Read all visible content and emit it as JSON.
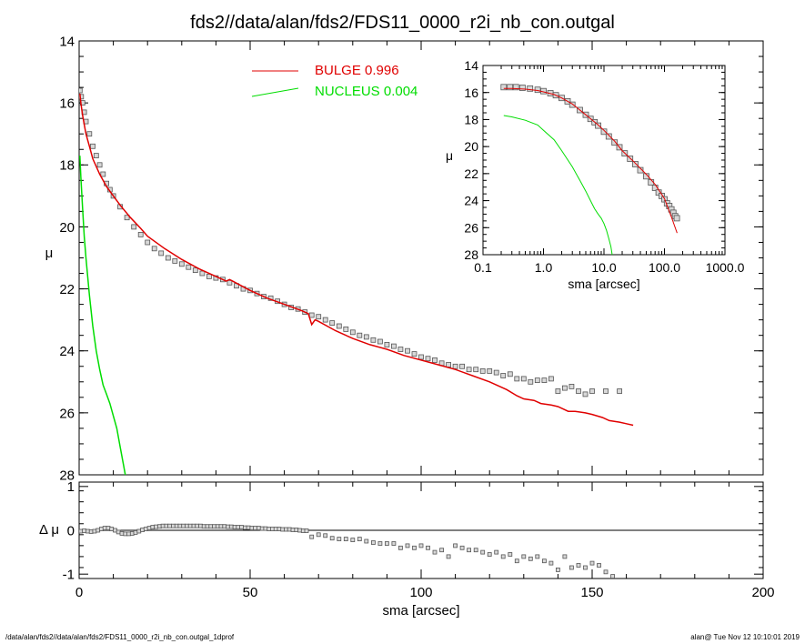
{
  "title": "fds2//data/alan/fds2/FDS11_0000_r2i_nb_con.outgal",
  "footer": {
    "left": "/data/alan/fds2//data/alan/fds2/FDS11_0000_r2i_nb_con.outgal_1dprof",
    "right": "alan@  Tue Nov 12 10:10:01 2019"
  },
  "colors": {
    "bulge": "#e00000",
    "nucleus": "#00dd00",
    "data": "#808080",
    "axis": "#000000"
  },
  "chart_data": [
    {
      "name": "main-profile",
      "type": "scatter",
      "xlabel": "",
      "ylabel": "μ",
      "xlim": [
        0,
        200
      ],
      "ylim": [
        28,
        14
      ],
      "y_reversed": true,
      "xticks": [
        0,
        50,
        100,
        150,
        200
      ],
      "yticks": [
        14,
        16,
        18,
        20,
        22,
        24,
        26,
        28
      ],
      "legend": {
        "placement": "top-center",
        "entries": [
          {
            "series": "bulge",
            "label": "BULGE  0.996"
          },
          {
            "series": "nucleus",
            "label": "NUCLEUS  0.004"
          }
        ]
      },
      "series": [
        {
          "name": "data",
          "style": "squares",
          "x": [
            0.2,
            0.6,
            1,
            1.5,
            2,
            3,
            4,
            5,
            6,
            7,
            8,
            9,
            10,
            12,
            14,
            16,
            18,
            20,
            22,
            24,
            26,
            28,
            30,
            32,
            34,
            36,
            38,
            40,
            42,
            44,
            46,
            48,
            50,
            52,
            54,
            56,
            58,
            60,
            62,
            64,
            66,
            68,
            70,
            72,
            74,
            76,
            78,
            80,
            82,
            84,
            86,
            88,
            90,
            92,
            94,
            96,
            98,
            100,
            102,
            104,
            106,
            108,
            110,
            112,
            114,
            116,
            118,
            120,
            122,
            124,
            126,
            128,
            130,
            132,
            134,
            136,
            138,
            140,
            142,
            144,
            146,
            148,
            150,
            154,
            158
          ],
          "y": [
            15.6,
            15.8,
            16.0,
            16.3,
            16.6,
            17.0,
            17.4,
            17.7,
            18.0,
            18.3,
            18.6,
            18.8,
            19.0,
            19.35,
            19.7,
            20.0,
            20.25,
            20.5,
            20.7,
            20.85,
            21.0,
            21.1,
            21.2,
            21.3,
            21.4,
            21.5,
            21.6,
            21.65,
            21.7,
            21.8,
            21.9,
            22.0,
            22.05,
            22.15,
            22.25,
            22.3,
            22.4,
            22.5,
            22.6,
            22.65,
            22.75,
            22.85,
            22.9,
            23.0,
            23.1,
            23.2,
            23.3,
            23.4,
            23.5,
            23.55,
            23.65,
            23.7,
            23.8,
            23.85,
            23.95,
            24.0,
            24.1,
            24.2,
            24.25,
            24.3,
            24.4,
            24.45,
            24.5,
            24.5,
            24.6,
            24.6,
            24.65,
            24.65,
            24.7,
            24.8,
            24.75,
            24.9,
            24.9,
            25.0,
            24.95,
            24.95,
            24.9,
            25.3,
            25.2,
            25.15,
            25.3,
            25.4,
            25.3,
            25.3,
            25.3
          ]
        },
        {
          "name": "bulge",
          "style": "line",
          "x": [
            0.2,
            0.5,
            1,
            2,
            3,
            4,
            6,
            8,
            10,
            12,
            15,
            18,
            20,
            25,
            30,
            35,
            40,
            43,
            44,
            50,
            55,
            60,
            65,
            67,
            68,
            69,
            70,
            75,
            80,
            85,
            90,
            95,
            100,
            105,
            110,
            115,
            120,
            125,
            128,
            130,
            133,
            135,
            138,
            140,
            143,
            145,
            148,
            150,
            153,
            155,
            158,
            160,
            162
          ],
          "y": [
            15.7,
            16.0,
            16.4,
            17.0,
            17.4,
            17.8,
            18.3,
            18.7,
            19.0,
            19.3,
            19.7,
            20.05,
            20.3,
            20.7,
            21.05,
            21.35,
            21.6,
            21.75,
            21.7,
            22.05,
            22.3,
            22.5,
            22.7,
            22.8,
            23.15,
            23.0,
            23.05,
            23.35,
            23.6,
            23.8,
            23.95,
            24.15,
            24.3,
            24.45,
            24.6,
            24.8,
            25.0,
            25.25,
            25.45,
            25.55,
            25.6,
            25.7,
            25.75,
            25.8,
            25.95,
            25.95,
            26.0,
            26.05,
            26.15,
            26.25,
            26.3,
            26.35,
            26.4
          ]
        },
        {
          "name": "nucleus",
          "style": "line",
          "x": [
            0.2,
            0.5,
            1,
            1.5,
            2,
            3,
            4,
            5,
            6,
            7,
            8,
            9,
            10,
            11,
            12,
            13,
            14
          ],
          "y": [
            17.7,
            18.4,
            19.4,
            20.3,
            21.0,
            22.2,
            23.2,
            24.0,
            24.6,
            25.1,
            25.4,
            25.7,
            26.1,
            26.5,
            27.1,
            27.7,
            28.3
          ]
        }
      ]
    },
    {
      "name": "residuals",
      "type": "scatter",
      "xlabel": "sma [arcsec]",
      "ylabel": "Δ μ",
      "xlim": [
        0,
        200
      ],
      "ylim": [
        -1.1,
        1.1
      ],
      "xticks": [
        0,
        50,
        100,
        150,
        200
      ],
      "yticks": [
        1,
        0,
        -1
      ],
      "series": [
        {
          "name": "residual",
          "style": "squares",
          "x": [
            0.5,
            1.5,
            2.5,
            3.5,
            4.5,
            5.5,
            6.5,
            7.5,
            8.5,
            9.5,
            10.5,
            11.5,
            12.5,
            13.5,
            14.5,
            15.5,
            16.5,
            17.5,
            18.5,
            19.5,
            20.5,
            21.5,
            22.5,
            23.5,
            24.5,
            25.5,
            26.5,
            27.5,
            28.5,
            29.5,
            30.5,
            31.5,
            32.5,
            33.5,
            34.5,
            35.5,
            36.5,
            37.5,
            38.5,
            39.5,
            40.5,
            41.5,
            42.5,
            43.5,
            44.5,
            45.5,
            46.5,
            47.5,
            48.5,
            49.5,
            50.5,
            51.5,
            52.5,
            53.5,
            54.5,
            55.5,
            56.5,
            57.5,
            58.5,
            59.5,
            60.5,
            61.5,
            62.5,
            63.5,
            64.5,
            65.5,
            66.5,
            68,
            70,
            72,
            74,
            76,
            78,
            80,
            82,
            84,
            86,
            88,
            90,
            92,
            94,
            96,
            98,
            100,
            102,
            104,
            106,
            108,
            110,
            112,
            114,
            116,
            118,
            120,
            122,
            124,
            126,
            128,
            130,
            132,
            134,
            136,
            138,
            140,
            142,
            144,
            146,
            148,
            150,
            152,
            154,
            156
          ],
          "y": [
            -0.02,
            -0.01,
            -0.02,
            -0.03,
            -0.02,
            0.0,
            0.03,
            0.05,
            0.05,
            0.03,
            0.0,
            -0.04,
            -0.07,
            -0.08,
            -0.08,
            -0.07,
            -0.05,
            -0.02,
            0.01,
            0.03,
            0.05,
            0.07,
            0.08,
            0.09,
            0.1,
            0.1,
            0.1,
            0.1,
            0.1,
            0.1,
            0.1,
            0.1,
            0.1,
            0.1,
            0.1,
            0.1,
            0.09,
            0.09,
            0.09,
            0.09,
            0.09,
            0.09,
            0.09,
            0.08,
            0.08,
            0.07,
            0.07,
            0.07,
            0.06,
            0.06,
            0.05,
            0.05,
            0.05,
            0.04,
            0.04,
            0.03,
            0.03,
            0.03,
            0.03,
            0.02,
            0.02,
            0.02,
            0.01,
            0.01,
            0.0,
            -0.01,
            -0.01,
            -0.15,
            -0.1,
            -0.12,
            -0.18,
            -0.2,
            -0.2,
            -0.22,
            -0.2,
            -0.25,
            -0.28,
            -0.3,
            -0.3,
            -0.3,
            -0.4,
            -0.35,
            -0.4,
            -0.35,
            -0.4,
            -0.5,
            -0.45,
            -0.6,
            -0.35,
            -0.4,
            -0.45,
            -0.45,
            -0.5,
            -0.55,
            -0.5,
            -0.6,
            -0.55,
            -0.7,
            -0.6,
            -0.65,
            -0.6,
            -0.7,
            -0.75,
            -0.9,
            -0.6,
            -0.85,
            -0.8,
            -0.85,
            -0.75,
            -0.8,
            -0.95,
            -1.05
          ]
        }
      ]
    },
    {
      "name": "inset-log",
      "type": "scatter",
      "xlabel": "sma [arcsec]",
      "ylabel": "μ",
      "xscale": "log",
      "xlim": [
        0.1,
        1000
      ],
      "ylim": [
        28,
        14
      ],
      "y_reversed": true,
      "xticks": [
        0.1,
        1,
        10,
        100,
        1000
      ],
      "xticklabels": [
        "0.1",
        "1.0",
        "10.0",
        "100.0",
        "1000.0"
      ],
      "yticks": [
        14,
        16,
        18,
        20,
        22,
        24,
        26,
        28
      ],
      "series": [
        {
          "name": "data",
          "style": "squares",
          "x": [
            0.22,
            0.28,
            0.35,
            0.45,
            0.6,
            0.8,
            1,
            1.3,
            1.6,
            2,
            2.5,
            3,
            4,
            5,
            6,
            7,
            8,
            10,
            12,
            15,
            18,
            22,
            27,
            33,
            40,
            50,
            60,
            70,
            80,
            90,
            100,
            110,
            120,
            130,
            140,
            150,
            160
          ],
          "y": [
            15.6,
            15.6,
            15.6,
            15.65,
            15.7,
            15.8,
            15.9,
            16.05,
            16.2,
            16.4,
            16.65,
            16.9,
            17.3,
            17.65,
            17.95,
            18.2,
            18.45,
            18.9,
            19.25,
            19.7,
            20.05,
            20.5,
            20.9,
            21.3,
            21.75,
            22.2,
            22.65,
            23.05,
            23.4,
            23.65,
            23.9,
            24.2,
            24.4,
            24.65,
            24.9,
            25.15,
            25.3
          ]
        },
        {
          "name": "bulge",
          "style": "line",
          "x": [
            0.22,
            0.3,
            0.5,
            0.8,
            1,
            1.5,
            2,
            3,
            5,
            8,
            10,
            15,
            20,
            30,
            50,
            70,
            100,
            130,
            162
          ],
          "y": [
            15.7,
            15.7,
            15.75,
            15.85,
            15.95,
            16.15,
            16.4,
            16.85,
            17.65,
            18.4,
            18.8,
            19.6,
            20.3,
            21.05,
            22.05,
            22.8,
            23.85,
            25.2,
            26.4
          ]
        },
        {
          "name": "nucleus",
          "style": "line",
          "x": [
            0.22,
            0.3,
            0.5,
            0.8,
            1,
            1.5,
            2,
            3,
            4,
            5,
            6,
            7,
            8,
            9,
            10,
            11,
            12,
            13,
            14
          ],
          "y": [
            17.7,
            17.8,
            18.05,
            18.4,
            18.8,
            19.5,
            20.3,
            21.5,
            22.5,
            23.3,
            24.0,
            24.6,
            25.0,
            25.3,
            25.7,
            26.2,
            26.8,
            27.4,
            28.3
          ]
        }
      ]
    }
  ]
}
